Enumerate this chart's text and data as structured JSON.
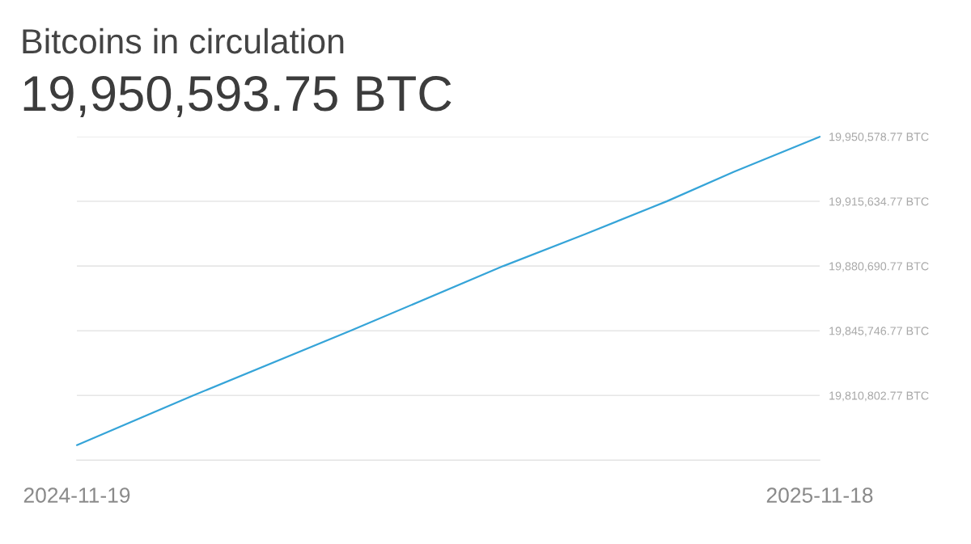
{
  "chart_data": {
    "type": "line",
    "title": "Bitcoins in circulation",
    "subtitle": "19,950,593.75 BTC",
    "x": [
      "2024-11-19",
      "2025-01-15",
      "2025-04-02",
      "2025-06-16",
      "2025-07-26",
      "2025-09-04",
      "2025-10-07",
      "2025-11-18"
    ],
    "series": [
      {
        "color": "#35a4d8",
        "values": [
          19784000,
          19810800,
          19845700,
          19880700,
          19897900,
          19915600,
          19931600,
          19950500
        ]
      }
    ],
    "xlim": [
      "2024-11-19",
      "2025-11-18"
    ],
    "xticks": [
      "2024-11-19",
      "2025-11-18"
    ],
    "ylim": [
      19775858.77,
      19950578.77
    ],
    "yticks": [
      {
        "value": 19810802.77,
        "label": "19,810,802.77 BTC"
      },
      {
        "value": 19845746.77,
        "label": "19,845,746.77 BTC"
      },
      {
        "value": 19880690.77,
        "label": "19,880,690.77 BTC"
      },
      {
        "value": 19915634.77,
        "label": "19,915,634.77 BTC"
      },
      {
        "value": 19950578.77,
        "label": "19,950,578.77 BTC"
      }
    ],
    "grid": "y",
    "line_style": "solid"
  }
}
